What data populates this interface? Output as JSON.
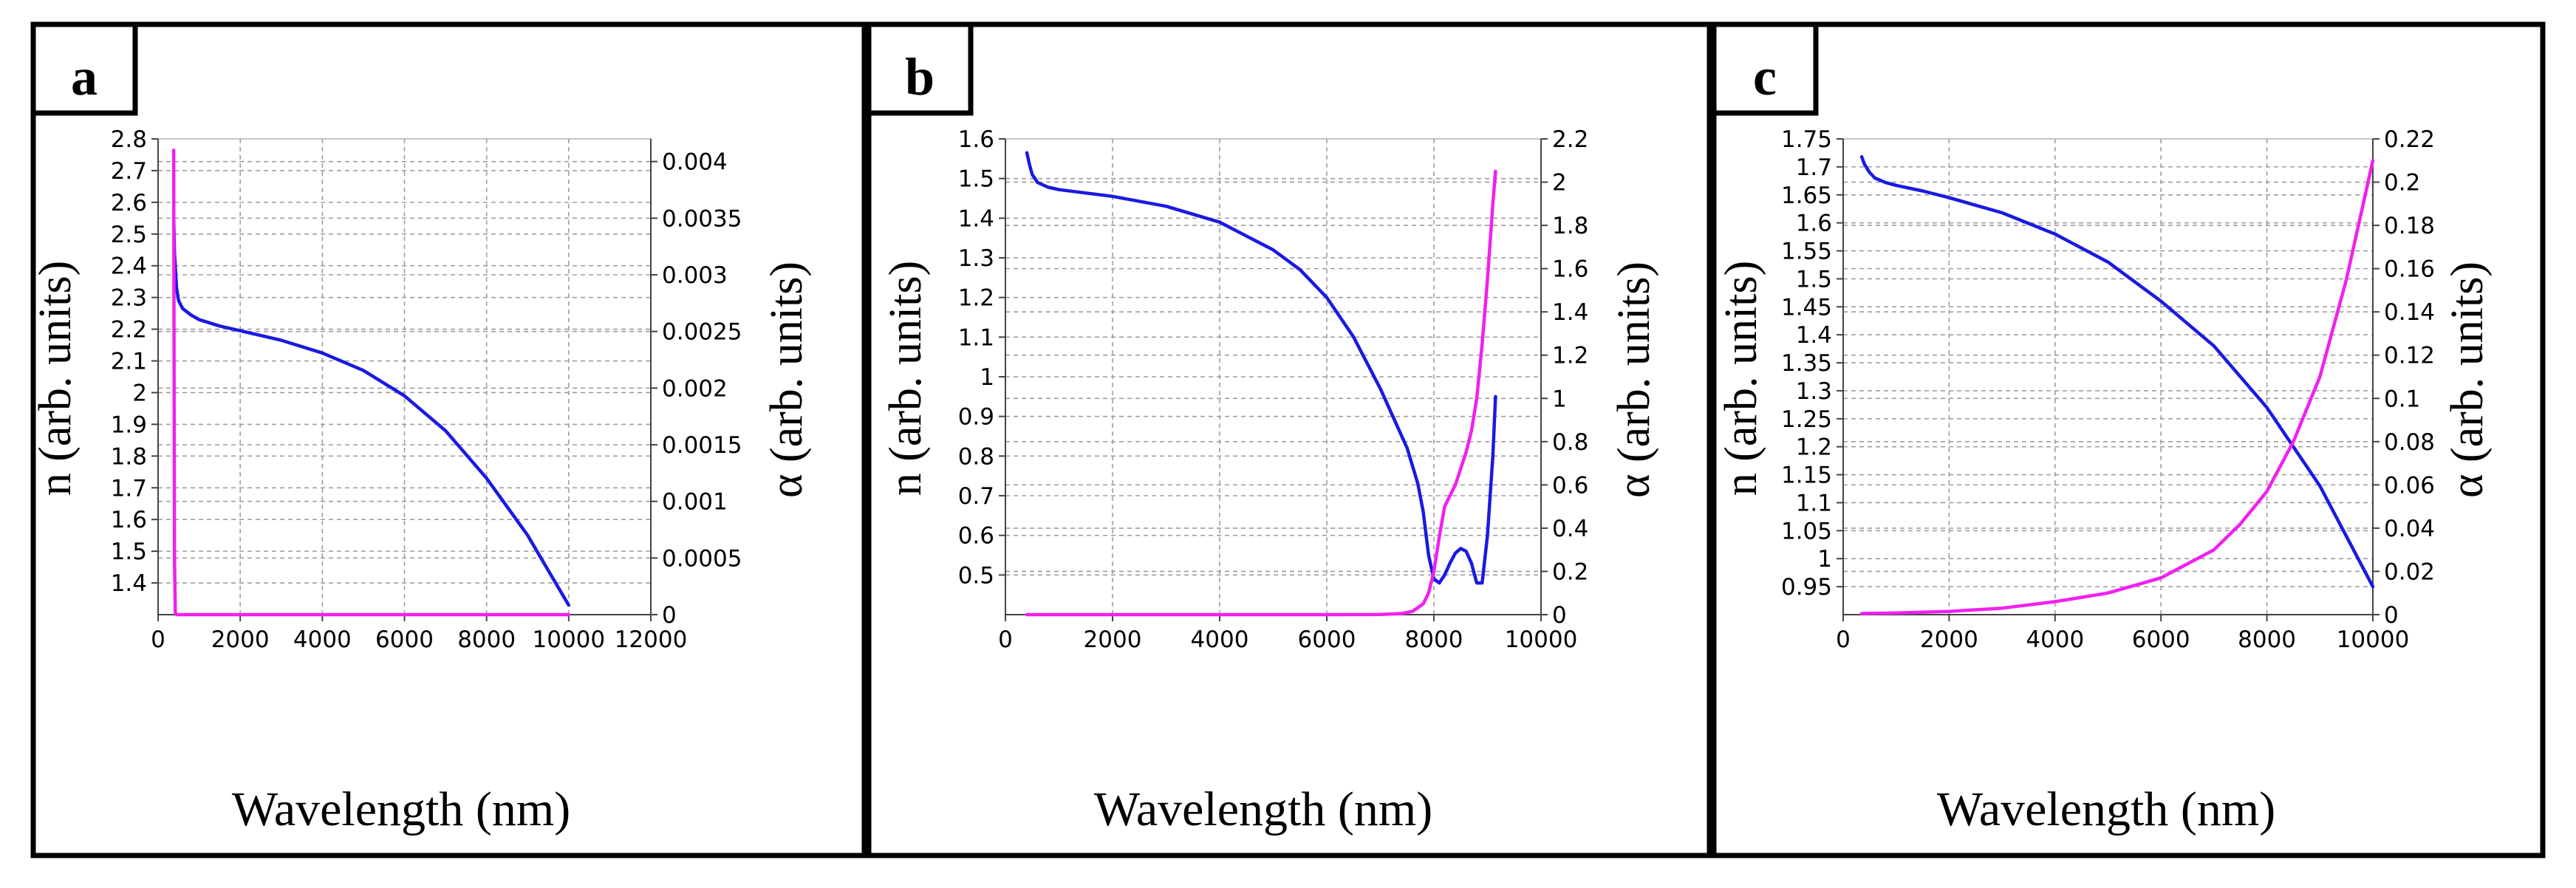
{
  "colors": {
    "n_curve": "#1a1ae0",
    "alpha_curve": "#f020f0"
  },
  "chart_data": [
    {
      "panel": "a",
      "type": "line",
      "xlabel": "Wavelength (nm)",
      "ylabel": "n (arb. units)",
      "y2label": "α (arb. units)",
      "xlim": [
        0,
        12000
      ],
      "xticks": [
        0,
        2000,
        4000,
        6000,
        8000,
        10000,
        12000
      ],
      "xtick_labels": [
        "0",
        "2000",
        "4000",
        "6000",
        "8000",
        "10000",
        "12000"
      ],
      "ylim": [
        1.3,
        2.8
      ],
      "yticks": [
        1.4,
        1.5,
        1.6,
        1.7,
        1.8,
        1.9,
        2.0,
        2.1,
        2.2,
        2.3,
        2.4,
        2.5,
        2.6,
        2.7,
        2.8
      ],
      "ytick_labels": [
        "1.4",
        "1.5",
        "1.6",
        "1.7",
        "1.8",
        "1.9",
        "2",
        "2.1",
        "2.2",
        "2.3",
        "2.4",
        "2.5",
        "2.6",
        "2.7",
        "2.8"
      ],
      "y2lim": [
        0,
        0.0042
      ],
      "y2ticks": [
        0,
        0.0005,
        0.001,
        0.0015,
        0.002,
        0.0025,
        0.003,
        0.0035,
        0.004
      ],
      "y2tick_labels": [
        "0",
        "0.0005",
        "0.001",
        "0.0015",
        "0.002",
        "0.0025",
        "0.003",
        "0.0035",
        "0.004"
      ],
      "series": [
        {
          "name": "n",
          "axis": "left",
          "color": "#1a1ae0",
          "x": [
            380,
            400,
            450,
            500,
            600,
            800,
            1000,
            1500,
            2000,
            3000,
            4000,
            5000,
            6000,
            7000,
            8000,
            8500,
            9000,
            9500,
            10000
          ],
          "y": [
            2.56,
            2.44,
            2.33,
            2.29,
            2.265,
            2.245,
            2.23,
            2.21,
            2.195,
            2.165,
            2.125,
            2.07,
            1.99,
            1.88,
            1.73,
            1.64,
            1.55,
            1.44,
            1.33
          ]
        },
        {
          "name": "α",
          "axis": "right",
          "color": "#f020f0",
          "x": [
            380,
            390,
            400,
            420,
            450,
            1000,
            2000,
            4000,
            6000,
            8000,
            10000
          ],
          "y": [
            0.0041,
            0.002,
            0.0005,
            2e-05,
            0,
            0,
            0,
            0,
            0,
            0,
            0
          ]
        }
      ]
    },
    {
      "panel": "b",
      "type": "line",
      "xlabel": "Wavelength (nm)",
      "ylabel": "n (arb. units)",
      "y2label": "α (arb. units)",
      "xlim": [
        0,
        10000
      ],
      "xticks": [
        0,
        2000,
        4000,
        6000,
        8000,
        10000
      ],
      "xtick_labels": [
        "0",
        "2000",
        "4000",
        "6000",
        "8000",
        "10000"
      ],
      "ylim": [
        0.4,
        1.6
      ],
      "yticks": [
        0.5,
        0.6,
        0.7,
        0.8,
        0.9,
        1.0,
        1.1,
        1.2,
        1.3,
        1.4,
        1.5,
        1.6
      ],
      "ytick_labels": [
        "0.5",
        "0.6",
        "0.7",
        "0.8",
        "0.9",
        "1",
        "1.1",
        "1.2",
        "1.3",
        "1.4",
        "1.5",
        "1.6"
      ],
      "y2lim": [
        0,
        2.2
      ],
      "y2ticks": [
        0,
        0.2,
        0.4,
        0.6,
        0.8,
        1.0,
        1.2,
        1.4,
        1.6,
        1.8,
        2.0,
        2.2
      ],
      "y2tick_labels": [
        "0",
        "0.2",
        "0.4",
        "0.6",
        "0.8",
        "1",
        "1.2",
        "1.4",
        "1.6",
        "1.8",
        "2",
        "2.2"
      ],
      "series": [
        {
          "name": "n",
          "axis": "left",
          "color": "#1a1ae0",
          "x": [
            400,
            450,
            500,
            600,
            800,
            1000,
            2000,
            3000,
            4000,
            5000,
            5500,
            6000,
            6500,
            7000,
            7300,
            7500,
            7700,
            7800,
            7900,
            8000,
            8100,
            8200,
            8300,
            8400,
            8500,
            8600,
            8700,
            8800,
            8900,
            9000,
            9100,
            9150
          ],
          "y": [
            1.565,
            1.535,
            1.51,
            1.49,
            1.478,
            1.472,
            1.455,
            1.43,
            1.39,
            1.32,
            1.27,
            1.2,
            1.1,
            0.97,
            0.88,
            0.82,
            0.73,
            0.66,
            0.55,
            0.49,
            0.48,
            0.5,
            0.53,
            0.555,
            0.567,
            0.56,
            0.53,
            0.48,
            0.48,
            0.6,
            0.8,
            0.95
          ]
        },
        {
          "name": "α",
          "axis": "right",
          "color": "#f020f0",
          "x": [
            400,
            2000,
            4000,
            6000,
            7000,
            7400,
            7600,
            7800,
            7900,
            8000,
            8100,
            8200,
            8400,
            8600,
            8700,
            8800,
            8900,
            9000,
            9100,
            9150
          ],
          "y": [
            0,
            0,
            0,
            0,
            0.001,
            0.005,
            0.015,
            0.05,
            0.1,
            0.2,
            0.36,
            0.5,
            0.6,
            0.75,
            0.85,
            1.0,
            1.25,
            1.55,
            1.9,
            2.05
          ]
        }
      ]
    },
    {
      "panel": "c",
      "type": "line",
      "xlabel": "Wavelength (nm)",
      "ylabel": "n (arb. units)",
      "y2label": "α (arb. units)",
      "xlim": [
        0,
        10000
      ],
      "xticks": [
        0,
        2000,
        4000,
        6000,
        8000,
        10000
      ],
      "xtick_labels": [
        "0",
        "2000",
        "4000",
        "6000",
        "8000",
        "10000"
      ],
      "ylim": [
        0.9,
        1.75
      ],
      "yticks": [
        0.95,
        1.0,
        1.05,
        1.1,
        1.15,
        1.2,
        1.25,
        1.3,
        1.35,
        1.4,
        1.45,
        1.5,
        1.55,
        1.6,
        1.65,
        1.7,
        1.75
      ],
      "ytick_labels": [
        "0.95",
        "1",
        "1.05",
        "1.1",
        "1.15",
        "1.2",
        "1.25",
        "1.3",
        "1.35",
        "1.4",
        "1.45",
        "1.5",
        "1.55",
        "1.6",
        "1.65",
        "1.7",
        "1.75"
      ],
      "y2lim": [
        0,
        0.22
      ],
      "y2ticks": [
        0,
        0.02,
        0.04,
        0.06,
        0.08,
        0.1,
        0.12,
        0.14,
        0.16,
        0.18,
        0.2,
        0.22
      ],
      "y2tick_labels": [
        "0",
        "0.02",
        "0.04",
        "0.06",
        "0.08",
        "0.1",
        "0.12",
        "0.14",
        "0.16",
        "0.18",
        "0.2",
        "0.22"
      ],
      "series": [
        {
          "name": "n",
          "axis": "left",
          "color": "#1a1ae0",
          "x": [
            350,
            400,
            500,
            600,
            800,
            1000,
            1500,
            2000,
            3000,
            4000,
            5000,
            6000,
            7000,
            8000,
            8500,
            9000,
            9500,
            10000
          ],
          "y": [
            1.718,
            1.705,
            1.69,
            1.68,
            1.672,
            1.667,
            1.657,
            1.645,
            1.618,
            1.58,
            1.53,
            1.46,
            1.38,
            1.27,
            1.2,
            1.13,
            1.04,
            0.95
          ]
        },
        {
          "name": "α",
          "axis": "right",
          "color": "#f020f0",
          "x": [
            350,
            1000,
            2000,
            3000,
            4000,
            5000,
            6000,
            7000,
            7500,
            8000,
            8500,
            9000,
            9500,
            10000
          ],
          "y": [
            0.0005,
            0.0008,
            0.0015,
            0.003,
            0.006,
            0.01,
            0.017,
            0.03,
            0.042,
            0.057,
            0.08,
            0.11,
            0.155,
            0.21
          ]
        }
      ]
    }
  ]
}
